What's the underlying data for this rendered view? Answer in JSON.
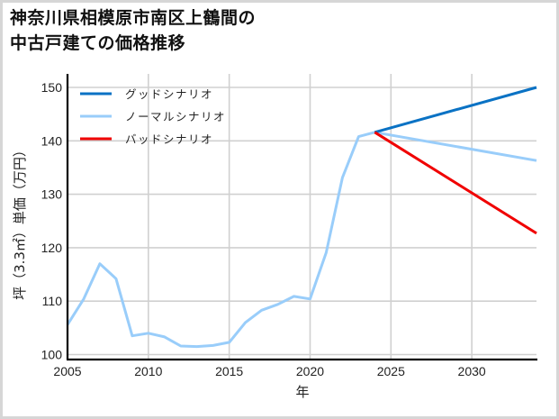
{
  "title": {
    "line1": "神奈川県相模原市南区上鶴間の",
    "line2": "中古戸建ての価格推移"
  },
  "chart_data": {
    "type": "line",
    "title": "神奈川県相模原市南区上鶴間の中古戸建ての価格推移",
    "xlabel": "年",
    "ylabel": "坪（3.3㎡）単価（万円）",
    "xlim": [
      2005,
      2034
    ],
    "ylim": [
      99.3,
      151.5
    ],
    "x_ticks": [
      2005,
      2010,
      2015,
      2020,
      2025,
      2030
    ],
    "y_ticks": [
      100,
      110,
      120,
      130,
      140,
      150
    ],
    "grid": true,
    "legend_position": "upper left",
    "series": [
      {
        "name": "グッドシナリオ",
        "color": "#0a72c4",
        "x": [
          2024,
          2034
        ],
        "values": [
          141.6,
          150.0
        ]
      },
      {
        "name": "ノーマルシナリオ",
        "color": "#99cdfa",
        "x": [
          2005,
          2006,
          2007,
          2008,
          2009,
          2010,
          2011,
          2012,
          2013,
          2014,
          2015,
          2016,
          2017,
          2018,
          2019,
          2020,
          2021,
          2022,
          2023,
          2024,
          2034
        ],
        "values": [
          105.6,
          110.4,
          117.0,
          114.2,
          103.5,
          104.0,
          103.3,
          101.6,
          101.5,
          101.7,
          102.3,
          106.0,
          108.3,
          109.4,
          110.9,
          110.4,
          119.1,
          133.1,
          140.8,
          141.6,
          136.3
        ]
      },
      {
        "name": "バッドシナリオ",
        "color": "#f00000",
        "x": [
          2024,
          2034
        ],
        "values": [
          141.6,
          122.7
        ]
      }
    ]
  }
}
